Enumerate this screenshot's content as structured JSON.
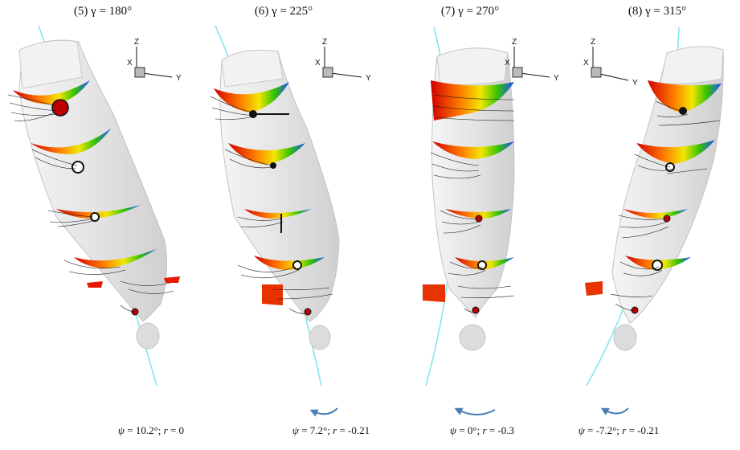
{
  "panels": [
    {
      "title": "(5) γ = 180°",
      "psi_sym": "ψ",
      "psi": " = 10.2°; ",
      "r_sym": "r",
      "r": " = 0",
      "rotation_arrow": "none"
    },
    {
      "title": "(6) γ = 225°",
      "psi_sym": "ψ",
      "psi": " = 7.2°; ",
      "r_sym": "r",
      "r": " = -0.21",
      "rotation_arrow": "curved-arrow-left-small"
    },
    {
      "title": "(7) γ = 270°",
      "psi_sym": "ψ",
      "psi": " = 0°; ",
      "r_sym": "r",
      "r": " = -0.3",
      "rotation_arrow": "curved-arrow-left-large"
    },
    {
      "title": "(8) γ = 315°",
      "psi_sym": "ψ",
      "psi": " = -7.2°; ",
      "r_sym": "r",
      "r": " = -0.21",
      "rotation_arrow": "curved-arrow-left-small"
    }
  ],
  "axes_triad": {
    "x": "X",
    "y": "Y",
    "z": "Z"
  },
  "colors": {
    "hull": "#e6e6e6",
    "hull_edge": "#bdbdbd",
    "trajectory": "#7fe3ec",
    "arrow": "#4a7fb5",
    "streamline": "#111111"
  }
}
